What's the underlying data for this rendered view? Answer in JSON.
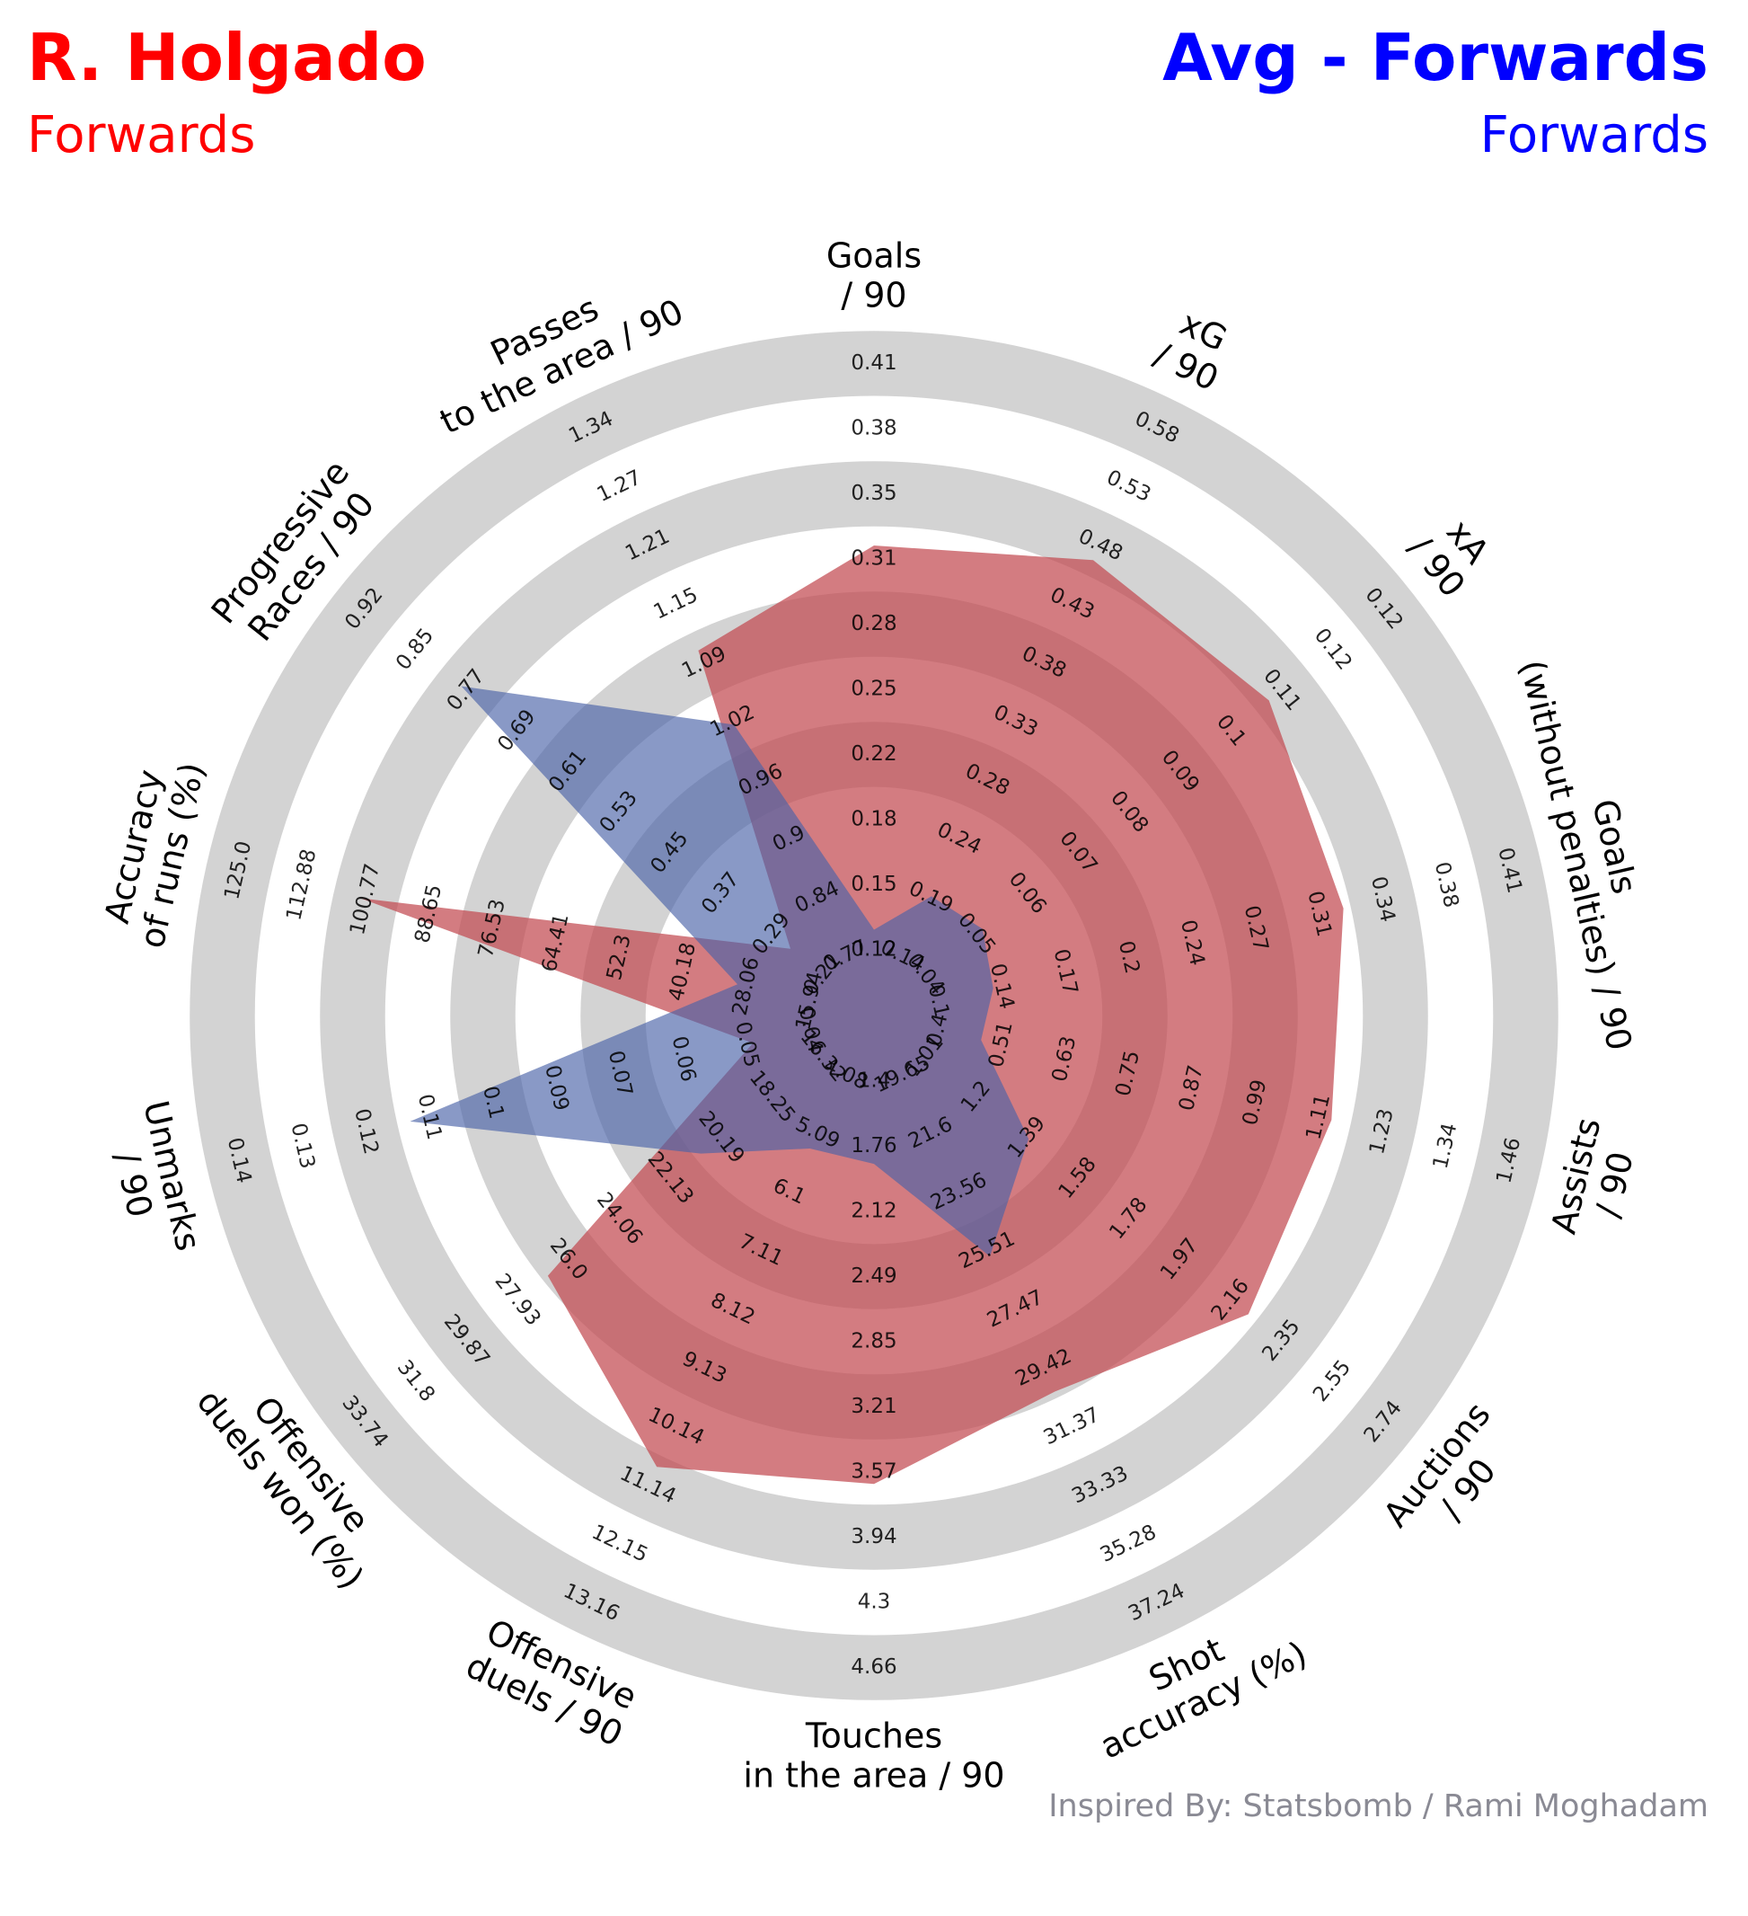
{
  "header": {
    "player_name": "R. Holgado",
    "player_position": "Forwards",
    "compare_name": "Avg - Forwards",
    "compare_position": "Forwards"
  },
  "footer": {
    "credit": "Inspired By: Statsbomb / Rami Moghadam"
  },
  "colors": {
    "player": "#ff0000",
    "compare": "#0000ff",
    "player_fill": "#c24a50",
    "compare_fill": "#4a63a8",
    "ring_band": "#d3d3d3",
    "credit": "#8a8a94"
  },
  "chart_data": {
    "type": "radar",
    "categories": [
      "Goals\n/ 90",
      "xG\n/ 90",
      "xA\n/ 90",
      "Goals\n(without penalties) / 90",
      "Assists\n/ 90",
      "Auctions\n/ 90",
      "Shot\naccuracy (%)",
      "Touches\nin the area / 90",
      "Offensive\nduels / 90",
      "Offensive\nduels won (%)",
      "Unmarks\n/ 90",
      "Accuracy\nof runs (%)",
      "Progressive\nRaces / 90",
      "Passes\nto the area / 90"
    ],
    "tick_labels": [
      [
        "0.12",
        "0.15",
        "0.18",
        "0.22",
        "0.25",
        "0.28",
        "0.31",
        "0.35",
        "0.38",
        "0.41"
      ],
      [
        "0.14",
        "0.19",
        "0.24",
        "0.28",
        "0.33",
        "0.38",
        "0.43",
        "0.48",
        "0.53",
        "0.58"
      ],
      [
        "0.04",
        "0.05",
        "0.06",
        "0.07",
        "0.08",
        "0.09",
        "0.1",
        "0.11",
        "0.12",
        "0.12"
      ],
      [
        "0.1",
        "0.14",
        "0.17",
        "0.2",
        "0.24",
        "0.27",
        "0.31",
        "0.34",
        "0.38",
        "0.41"
      ],
      [
        "0.4",
        "0.51",
        "0.63",
        "0.75",
        "0.87",
        "0.99",
        "1.11",
        "1.23",
        "1.34",
        "1.46"
      ],
      [
        "1.01",
        "1.2",
        "1.39",
        "1.58",
        "1.78",
        "1.97",
        "2.16",
        "2.35",
        "2.55",
        "2.74"
      ],
      [
        "19.65",
        "21.6",
        "23.56",
        "25.51",
        "27.47",
        "29.42",
        "31.37",
        "33.33",
        "35.28",
        "37.24"
      ],
      [
        "1.4",
        "1.76",
        "2.12",
        "2.49",
        "2.85",
        "3.21",
        "3.57",
        "3.94",
        "4.3",
        "4.66"
      ],
      [
        "4.08",
        "5.09",
        "6.1",
        "7.11",
        "8.12",
        "9.13",
        "10.14",
        "11.14",
        "12.15",
        "13.16"
      ],
      [
        "16.32",
        "18.25",
        "20.19",
        "22.13",
        "24.06",
        "26.0",
        "27.93",
        "29.87",
        "31.8",
        "33.74"
      ],
      [
        "0.04",
        "0.05",
        "0.06",
        "0.07",
        "0.09",
        "0.1",
        "0.11",
        "0.12",
        "0.13",
        "0.14"
      ],
      [
        "15.94",
        "28.06",
        "40.18",
        "52.3",
        "64.41",
        "76.53",
        "88.65",
        "100.77",
        "112.88",
        "125.0"
      ],
      [
        "0.21",
        "0.29",
        "0.37",
        "0.45",
        "0.53",
        "0.61",
        "0.69",
        "0.77",
        "0.85",
        "0.92"
      ],
      [
        "0.77",
        "0.84",
        "0.9",
        "0.96",
        "1.02",
        "1.09",
        "1.15",
        "1.21",
        "1.27",
        "1.34"
      ]
    ],
    "series": [
      {
        "name": "R. Holgado",
        "values": [
          0.32,
          0.47,
          0.1,
          0.32,
          1.13,
          2.23,
          30.2,
          3.64,
          10.82,
          26.77,
          0.05,
          101.8,
          0.26,
          1.1
        ]
      },
      {
        "name": "Avg - Forwards",
        "values": [
          0.13,
          0.19,
          0.05,
          0.13,
          0.48,
          1.4,
          25.7,
          1.86,
          5.35,
          20.95,
          0.11,
          29.8,
          0.77,
          1.02
        ]
      }
    ],
    "grid": true,
    "legend": "top"
  }
}
